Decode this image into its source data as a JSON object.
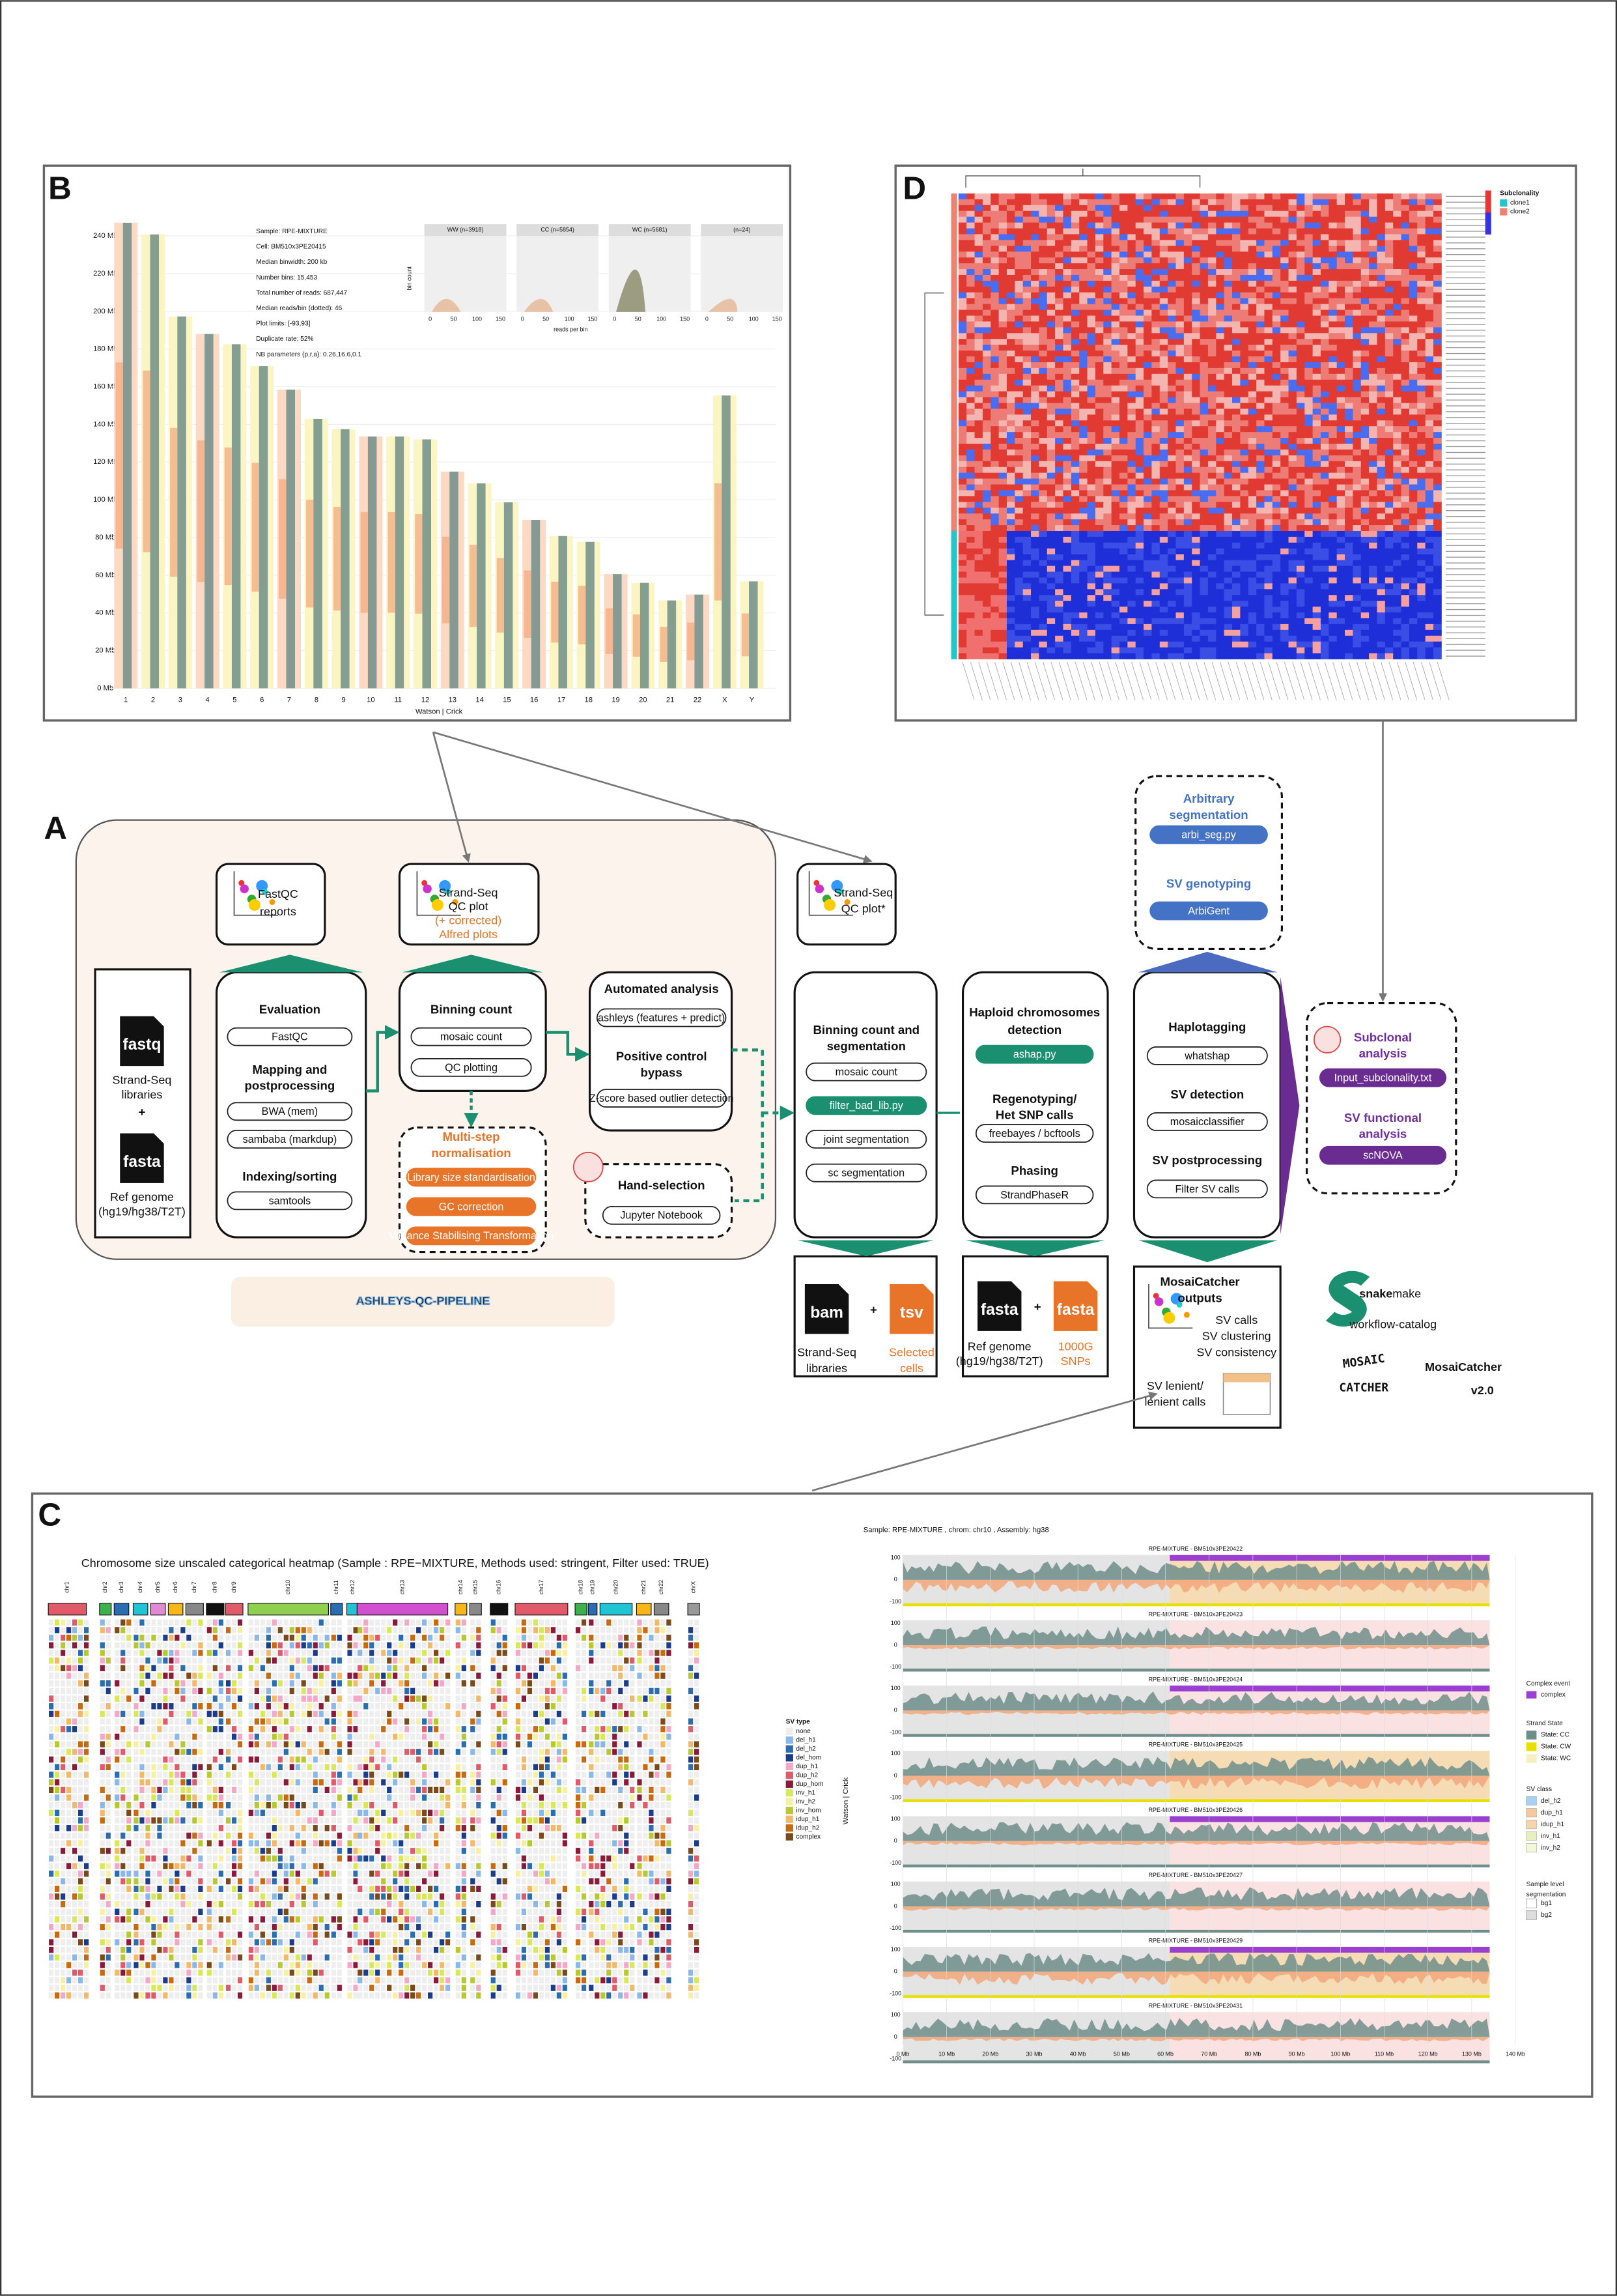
{
  "panel_labels": {
    "a": "A",
    "b": "B",
    "c": "C",
    "d": "D"
  },
  "panel_b": {
    "y_ticks": [
      "0 Mb",
      "20 Mb",
      "40 Mb",
      "60 Mb",
      "80 Mb",
      "100 Mb",
      "120 Mb",
      "140 Mb",
      "160 Mb",
      "180 Mb",
      "200 Mb",
      "220 Mb",
      "240 Mb"
    ],
    "chromosomes": [
      "1",
      "2",
      "3",
      "4",
      "5",
      "6",
      "7",
      "8",
      "9",
      "10",
      "11",
      "12",
      "13",
      "14",
      "15",
      "16",
      "17",
      "18",
      "19",
      "20",
      "21",
      "22",
      "X",
      "Y"
    ],
    "x_label": "Watson | Crick",
    "info": [
      "Sample: RPE-MIXTURE",
      "Cell: BM510x3PE20415",
      "Median binwidth: 200 kb",
      "Number bins: 15,453",
      "Total number of reads: 687,447",
      "Median reads/bin (dotted): 46",
      "Plot limits: [-93,93]",
      "Duplicate rate: 52%",
      "NB parameters (p,r,a): 0.26,16.6,0.1"
    ],
    "hist_titles": [
      "WW (n=3918)",
      "CC (n=5854)",
      "WC (n=5681)",
      "(n=24)"
    ],
    "hist_x_ticks": [
      "0",
      "50",
      "100",
      "150"
    ],
    "hist_x_label": "reads per bin",
    "hist_y_label": "bin count"
  },
  "panel_d": {
    "legend_title": "Subclonality",
    "legend_items": [
      "clone1",
      "clone2"
    ]
  },
  "panel_a": {
    "fastqc_reports": [
      "FastQC",
      "reports"
    ],
    "qc_plot": [
      "Strand-Seq",
      "QC plot",
      "(+ corrected)",
      "Alfred plots"
    ],
    "qc_plot_star": [
      "Strand-Seq",
      "QC plot*"
    ],
    "arbitrary": {
      "title": [
        "Arbitrary",
        "segmentation"
      ],
      "tool": "arbi_seg.py",
      "genotyping": "SV genotyping",
      "genotyping_tool": "ArbiGent"
    },
    "inputs": {
      "fastq": "fastq",
      "libraries": [
        "Strand-Seq",
        "libraries"
      ],
      "plus": "+",
      "fasta": "fasta",
      "ref": [
        "Ref genome",
        "(hg19/hg38/T2T)"
      ]
    },
    "evaluation": {
      "title": "Evaluation",
      "tool": "FastQC",
      "mapping": [
        "Mapping and",
        "postprocessing"
      ],
      "bwa": "BWA (mem)",
      "sambaba": "sambaba (markdup)",
      "indexing": "Indexing/sorting",
      "samtools": "samtools"
    },
    "binning": {
      "title": "Binning count",
      "mosaic": "mosaic count",
      "qc": "QC plotting"
    },
    "normalisation": {
      "title": [
        "Multi-step",
        "normalisation"
      ],
      "steps": [
        "Library size standardisation",
        "GC correction",
        "Variance Stabilising Transformation"
      ]
    },
    "automated": {
      "title": "Automated analysis",
      "ashleys": "ashleys (features + predict)",
      "bypass": [
        "Positive control",
        "bypass"
      ],
      "zscore": "Z-score based outlier detection"
    },
    "hand": {
      "title": "Hand-selection",
      "tool": "Jupyter Notebook"
    },
    "segmentation": {
      "title": [
        "Binning count and",
        "segmentation"
      ],
      "steps": [
        "mosaic count",
        "filter_bad_lib.py",
        "joint segmentation",
        "sc segmentation"
      ]
    },
    "haploid": {
      "title": [
        "Haploid chromosomes",
        "detection"
      ],
      "tool": "ashap.py",
      "regeno": [
        "Regenotyping/",
        "Het SNP calls"
      ],
      "regeno_tool": "freebayes / bcftools",
      "phasing": "Phasing",
      "phasing_tool": "StrandPhaseR"
    },
    "sv": {
      "haplotagging": "Haplotagging",
      "whatshap": "whatshap",
      "detection": "SV detection",
      "classifier": "mosaicclassifier",
      "post": "SV postprocessing",
      "filter": "Filter SV calls"
    },
    "subclonal": {
      "title": [
        "Subclonal",
        "analysis"
      ],
      "tool": "Input_subclonality.txt",
      "functional": [
        "SV functional",
        "analysis"
      ],
      "functional_tool": "scNOVA"
    },
    "bottom_left": {
      "bam": "bam",
      "plus": "+",
      "tsv": "tsv",
      "libraries": [
        "Strand-Seq",
        "libraries"
      ],
      "cells": [
        "Selected",
        "cells"
      ]
    },
    "bottom_mid": {
      "fasta": "fasta",
      "plus": "+",
      "fasta2": "fasta",
      "ref": [
        "Ref genome",
        "(hg19/hg38/T2T)"
      ],
      "snps": [
        "1000G",
        "SNPs"
      ]
    },
    "outputs": {
      "title": [
        "MosaiCatcher",
        "outputs"
      ],
      "items": [
        "SV calls",
        "SV clustering",
        "SV consistency"
      ],
      "lenient": [
        "SV lenient/",
        "lenient calls"
      ]
    },
    "logos": {
      "ashleys": "ASHLEYS-QC-PIPELINE",
      "snake_bold": "snake",
      "snake_rest": "make",
      "catalog": "workflow-catalog",
      "mosaic_logo": [
        "MOSAIC",
        "CATCHER"
      ],
      "mosaic": "MosaiCatcher",
      "version": "v2.0"
    }
  },
  "panel_c": {
    "title": "Chromosome size unscaled categorical heatmap (Sample : RPE−MIXTURE, Methods used: stringent, Filter used: TRUE)",
    "chromosomes": [
      "chr1",
      "chr2",
      "chr3",
      "chr4",
      "chr5",
      "chr6",
      "chr7",
      "chr8",
      "chr9",
      "chr10",
      "chr11",
      "chr12",
      "chr13",
      "chr14",
      "chr15",
      "chr16",
      "chr17",
      "chr18",
      "chr19",
      "chr20",
      "chr21",
      "chr22",
      "chrX"
    ],
    "sv_legend_title": "SV type",
    "sv_types": [
      "none",
      "del_h1",
      "del_h2",
      "del_hom",
      "dup_h1",
      "dup_h2",
      "dup_hom",
      "inv_h1",
      "inv_h2",
      "inv_hom",
      "idup_h1",
      "idup_h2",
      "complex"
    ],
    "sample_title": "Sample: RPE-MIXTURE , chrom: chr10 , Assembly: hg38",
    "tracks": [
      "RPE-MIXTURE - BM510x3PE20422",
      "RPE-MIXTURE - BM510x3PE20423",
      "RPE-MIXTURE - BM510x3PE20424",
      "RPE-MIXTURE - BM510x3PE20425",
      "RPE-MIXTURE - BM510x3PE20426",
      "RPE-MIXTURE - BM510x3PE20427",
      "RPE-MIXTURE - BM510x3PE20429",
      "RPE-MIXTURE - BM510x3PE20431"
    ],
    "y_ticks": [
      "100",
      "0",
      "-100"
    ],
    "y_label": "Watson | Crick",
    "x_ticks": [
      "0 Mb",
      "10 Mb",
      "20 Mb",
      "30 Mb",
      "40 Mb",
      "50 Mb",
      "60 Mb",
      "70 Mb",
      "80 Mb",
      "90 Mb",
      "100 Mb",
      "110 Mb",
      "120 Mb",
      "130 Mb",
      "140 Mb"
    ],
    "legend": {
      "complex_title": "Complex event",
      "complex": "complex",
      "strand_title": "Strand State",
      "strand": [
        "State: CC",
        "State: CW",
        "State: WC"
      ],
      "svclass_title": "SV class",
      "svclass": [
        "del_h2",
        "dup_h1",
        "idup_h1",
        "inv_h1",
        "inv_h2"
      ],
      "seg_title": [
        "Sample level",
        "segmentation"
      ],
      "seg": [
        "bg1",
        "bg2"
      ]
    }
  }
}
